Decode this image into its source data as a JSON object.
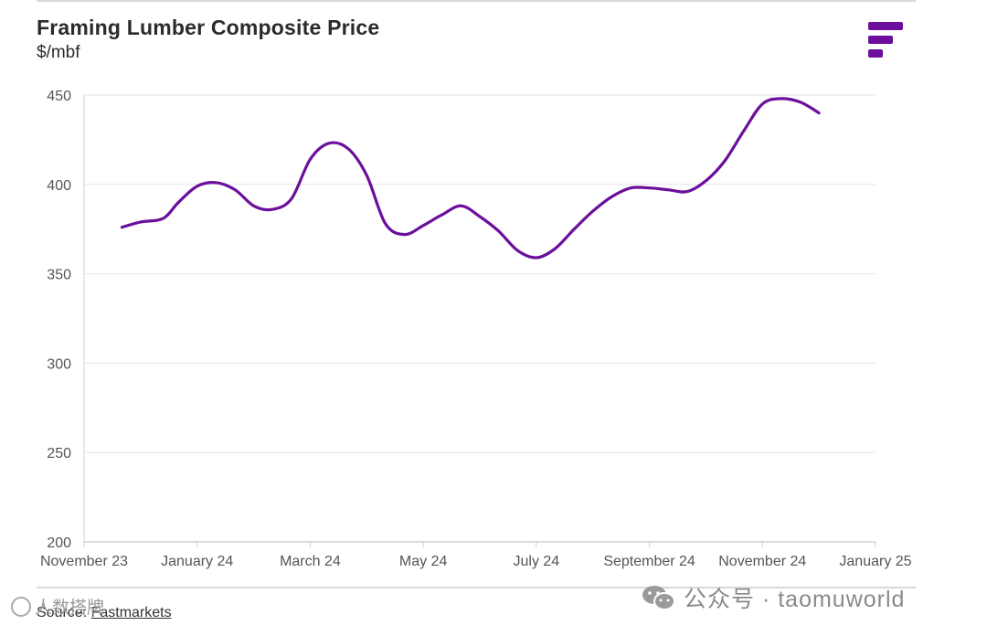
{
  "header": {
    "title": "Framing Lumber Composite Price",
    "subtitle": "$/mbf",
    "logo_icon": "fastmarkets-logo-icon",
    "brand_color": "#6b0f9c"
  },
  "footer": {
    "source_prefix": "Source: ",
    "source_link": "Fastmarkets"
  },
  "watermark": {
    "text": "公众号 · taomuworld",
    "left_text": "人数搭牌"
  },
  "chart_data": {
    "type": "line",
    "title": "Framing Lumber Composite Price",
    "ylabel": "$/mbf",
    "xlabel": "",
    "ylim": [
      200,
      450
    ],
    "yticks": [
      200,
      250,
      300,
      350,
      400,
      450
    ],
    "xlim": [
      0,
      14
    ],
    "xticks": [
      {
        "label": "November 23",
        "x": 0
      },
      {
        "label": "January 24",
        "x": 2
      },
      {
        "label": "March 24",
        "x": 4
      },
      {
        "label": "May 24",
        "x": 6
      },
      {
        "label": "July 24",
        "x": 8
      },
      {
        "label": "September 24",
        "x": 10
      },
      {
        "label": "November 24",
        "x": 12
      },
      {
        "label": "January 25",
        "x": 14
      }
    ],
    "grid": true,
    "series": [
      {
        "name": "Framing Lumber Composite Price",
        "color": "#6b0f9c",
        "x": [
          0.67,
          1.0,
          1.4,
          1.67,
          2.0,
          2.33,
          2.67,
          3.0,
          3.33,
          3.67,
          4.0,
          4.33,
          4.67,
          5.0,
          5.33,
          5.67,
          6.0,
          6.33,
          6.67,
          7.0,
          7.33,
          7.67,
          8.0,
          8.33,
          8.67,
          9.0,
          9.33,
          9.67,
          10.0,
          10.33,
          10.67,
          11.0,
          11.33,
          11.67,
          12.0,
          12.33,
          12.67,
          13.0
        ],
        "values": [
          376,
          379,
          381,
          390,
          399,
          401,
          397,
          388,
          386,
          392,
          414,
          423,
          420,
          405,
          378,
          372,
          377,
          383,
          388,
          382,
          374,
          363,
          359,
          364,
          375,
          385,
          393,
          398,
          398,
          397,
          396,
          402,
          413,
          430,
          445,
          448,
          446,
          440
        ]
      }
    ]
  }
}
